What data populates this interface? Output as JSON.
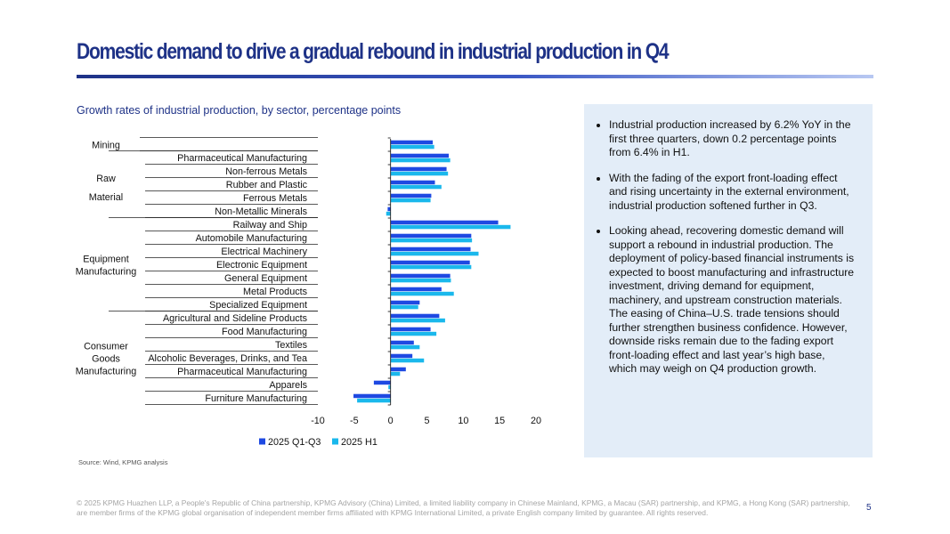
{
  "slide": {
    "title": "Domestic demand to drive a gradual rebound in industrial production in Q4",
    "chart_title": "Growth rates of industrial production, by sector, percentage points",
    "source": "Source: Wind, KPMG analysis",
    "footer": "© 2025 KPMG Huazhen LLP, a People's Republic of China partnership, KPMG Advisory (China) Limited, a limited liability company in Chinese Mainland, KPMG, a Macau (SAR) partnership, and KPMG, a Hong Kong (SAR) partnership, are member firms of the KPMG global organisation of independent member firms affiliated with KPMG International Limited, a private English company limited by guarantee. All rights reserved.",
    "page_number": "5"
  },
  "bullets": [
    "Industrial production increased by 6.2% YoY in the first three quarters, down 0.2 percentage points from 6.4% in H1.",
    "With the fading of the export front-loading effect and rising uncertainty in the external environment, industrial production softened further in Q3.",
    "Looking ahead, recovering domestic demand will support a rebound in industrial production. The deployment of policy-based financial instruments is expected to boost manufacturing and infrastructure investment, driving demand for equipment, machinery, and upstream construction materials. The easing of China–U.S. trade tensions should further strengthen business confidence. However, downside risks remain due to the fading export front-loading effect and last year’s high base, which may weigh on Q4 production growth."
  ],
  "chart_data": {
    "type": "bar",
    "orientation": "horizontal",
    "title": "Growth rates of industrial production, by sector, percentage points",
    "xlim": [
      -10,
      20
    ],
    "ticks": [
      "-10",
      "-5",
      "0",
      "5",
      "10",
      "15",
      "20"
    ],
    "tick_values": [
      -10,
      -5,
      0,
      5,
      10,
      15,
      20
    ],
    "groups": [
      {
        "label_lines": [
          "Mining"
        ],
        "categories": [
          ""
        ]
      },
      {
        "label_lines": [
          "Raw",
          "Material"
        ],
        "categories": [
          "Pharmaceutical Manufacturing",
          "Non-ferrous Metals",
          "Rubber and Plastic",
          "Ferrous Metals",
          "Non-Metallic Minerals"
        ]
      },
      {
        "label_lines": [
          "Equipment",
          "Manufacturing"
        ],
        "categories": [
          "Railway and Ship",
          "Automobile Manufacturing",
          "Electrical Machinery",
          "Electronic Equipment",
          "General Equipment",
          "Metal Products",
          "Specialized Equipment"
        ]
      },
      {
        "label_lines": [
          "Consumer",
          "Goods",
          "Manufacturing"
        ],
        "categories": [
          "Agricultural and Sideline Products",
          "Food Manufacturing",
          "Textiles",
          "Alcoholic Beverages, Drinks, and Tea",
          "Pharmaceutical Manufacturing",
          "Apparels",
          "Furniture Manufacturing"
        ]
      }
    ],
    "series": [
      {
        "name": "2025 Q1-Q3",
        "color": "#1e49e2",
        "values": [
          5.8,
          8.0,
          7.7,
          6.1,
          5.6,
          -0.4,
          14.8,
          11.1,
          11.0,
          10.9,
          8.2,
          7.0,
          4.0,
          6.7,
          5.5,
          3.2,
          3.0,
          2.1,
          -2.3,
          -5.1
        ]
      },
      {
        "name": "2025 H1",
        "color": "#1ab8ec",
        "values": [
          6.0,
          8.2,
          7.9,
          7.0,
          5.5,
          -0.6,
          16.5,
          11.2,
          12.1,
          11.1,
          8.3,
          8.7,
          3.8,
          7.5,
          6.3,
          4.0,
          4.6,
          1.3,
          -0.3,
          -4.6
        ]
      }
    ]
  }
}
